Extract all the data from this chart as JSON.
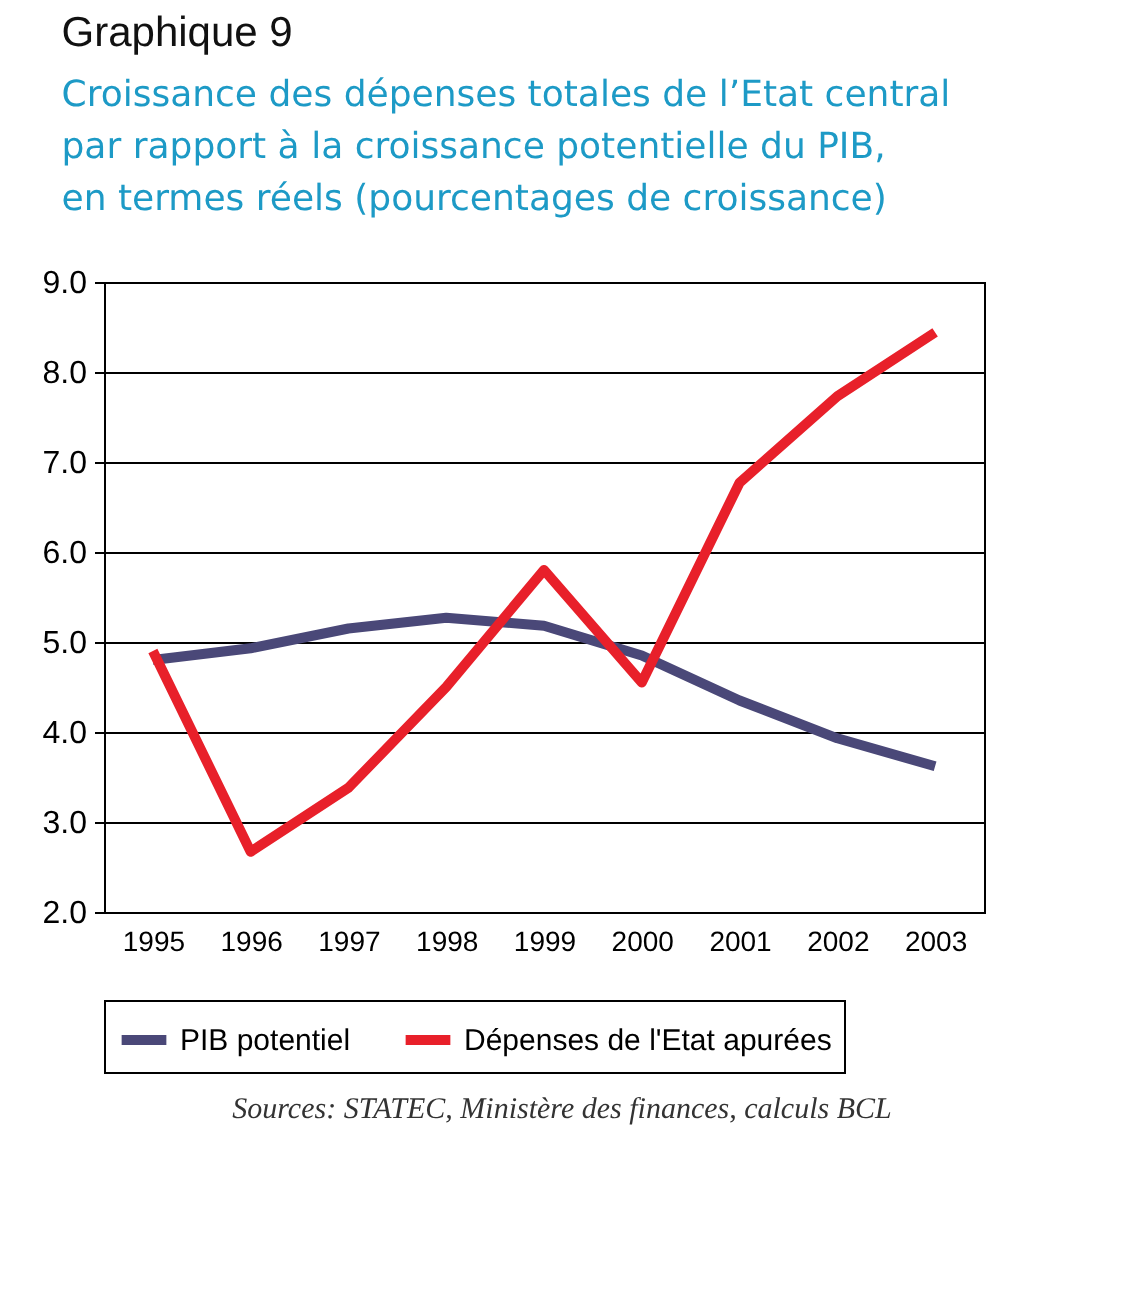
{
  "chart_data": {
    "type": "line",
    "title": "Graphique 9",
    "subtitle": "Croissance des dépenses totales de l’Etat central\npar rapport à la croissance potentielle du PIB,\nen termes réels (pourcentages de croissance)",
    "categories": [
      "1995",
      "1996",
      "1997",
      "1998",
      "1999",
      "2000",
      "2001",
      "2002",
      "2003"
    ],
    "series": [
      {
        "name": "PIB potentiel",
        "color": "#4a4878",
        "values": [
          4.8,
          4.93,
          5.15,
          5.27,
          5.18,
          4.85,
          4.35,
          3.93,
          3.62
        ]
      },
      {
        "name": "Dépenses de l'Etat apurées",
        "color": "#e8202a",
        "values": [
          4.9,
          2.67,
          3.38,
          4.5,
          5.8,
          4.55,
          6.77,
          7.73,
          8.44
        ]
      }
    ],
    "ylim": [
      2,
      9
    ],
    "yticks": [
      {
        "value": 2,
        "label": "2.0"
      },
      {
        "value": 3,
        "label": "3.0"
      },
      {
        "value": 4,
        "label": "4.0"
      },
      {
        "value": 5,
        "label": "5.0"
      },
      {
        "value": 6,
        "label": "6.0"
      },
      {
        "value": 7,
        "label": "7.0"
      },
      {
        "value": 8,
        "label": "8.0"
      },
      {
        "value": 9,
        "label": "9.0"
      }
    ],
    "grid": "y",
    "legend": "bottom",
    "marker": "none",
    "line_style": "solid",
    "annotations": [
      "Sources: STATEC, Ministère des finances, calculs BCL"
    ]
  }
}
